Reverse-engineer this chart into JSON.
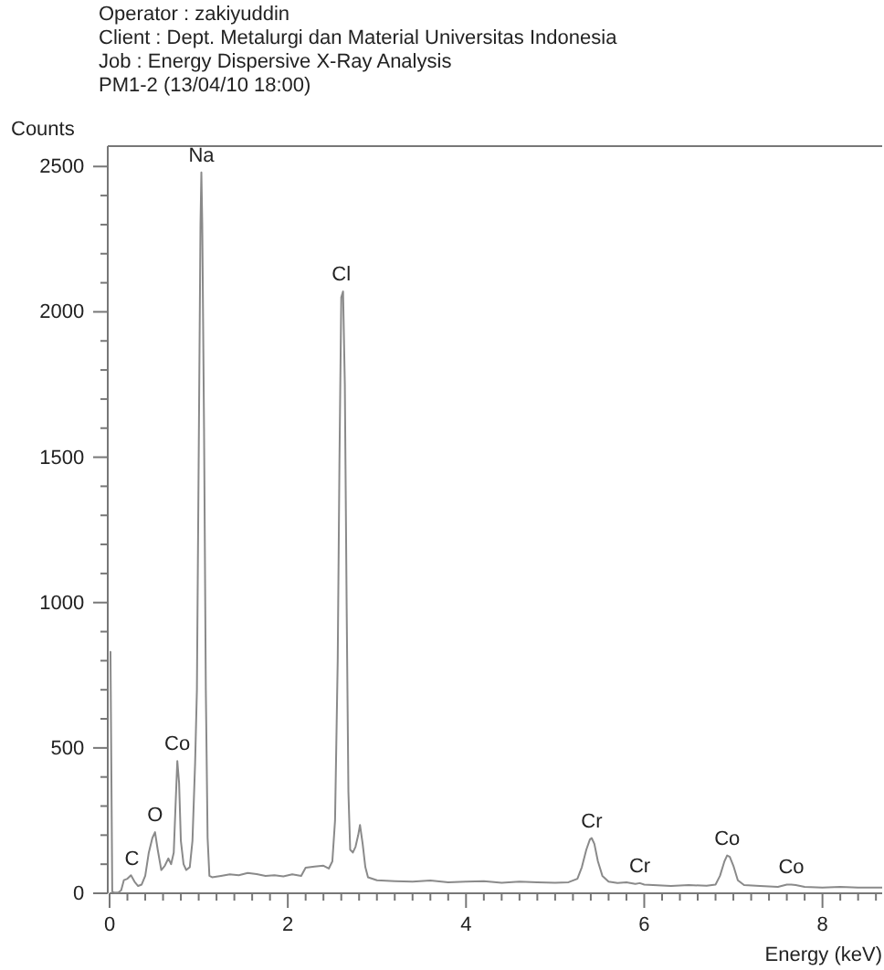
{
  "chart_data": {
    "type": "line",
    "xlabel": "Energy (keV)",
    "ylabel": "Counts",
    "annotations": [
      "Operator : zakiyuddin",
      "Client : Dept. Metalurgi dan Material Universitas Indonesia",
      "Job : Energy Dispersive X-Ray Analysis",
      "PM1-2 (13/04/10 18:00)",
      {
        "text": "Na",
        "x": 1.03,
        "y": 2480
      },
      {
        "text": "Cl",
        "x": 2.6,
        "y": 2070
      },
      {
        "text": "Co",
        "x": 0.76,
        "y": 455
      },
      {
        "text": "O",
        "x": 0.51,
        "y": 210
      },
      {
        "text": "C",
        "x": 0.25,
        "y": 60
      },
      {
        "text": "Cr",
        "x": 5.41,
        "y": 190
      },
      {
        "text": "Cr",
        "x": 5.95,
        "y": 35
      },
      {
        "text": "Co",
        "x": 6.93,
        "y": 130
      },
      {
        "text": "Co",
        "x": 7.65,
        "y": 30
      }
    ],
    "xlim": [
      0,
      8.67
    ],
    "ylim": [
      0,
      2570
    ],
    "xticks": [
      0,
      {
        "value": 0.2,
        "label": null
      },
      {
        "value": 0.4,
        "label": null
      },
      {
        "value": 0.6,
        "label": null
      },
      {
        "value": 0.8,
        "label": null
      },
      {
        "value": 1,
        "label": null
      },
      {
        "value": 1.2,
        "label": null
      },
      {
        "value": 1.4,
        "label": null
      },
      {
        "value": 1.6,
        "label": null
      },
      {
        "value": 1.8,
        "label": null
      },
      2,
      {
        "value": 2.2,
        "label": null
      },
      {
        "value": 2.4,
        "label": null
      },
      {
        "value": 2.6,
        "label": null
      },
      {
        "value": 2.8,
        "label": null
      },
      {
        "value": 3,
        "label": null
      },
      {
        "value": 3.2,
        "label": null
      },
      {
        "value": 3.4,
        "label": null
      },
      {
        "value": 3.6,
        "label": null
      },
      {
        "value": 3.8,
        "label": null
      },
      4,
      {
        "value": 4.2,
        "label": null
      },
      {
        "value": 4.4,
        "label": null
      },
      {
        "value": 4.6,
        "label": null
      },
      {
        "value": 4.8,
        "label": null
      },
      {
        "value": 5,
        "label": null
      },
      {
        "value": 5.2,
        "label": null
      },
      {
        "value": 5.4,
        "label": null
      },
      {
        "value": 5.6,
        "label": null
      },
      {
        "value": 5.8,
        "label": null
      },
      6,
      {
        "value": 6.2,
        "label": null
      },
      {
        "value": 6.4,
        "label": null
      },
      {
        "value": 6.6,
        "label": null
      },
      {
        "value": 6.8,
        "label": null
      },
      {
        "value": 7,
        "label": null
      },
      {
        "value": 7.2,
        "label": null
      },
      {
        "value": 7.4,
        "label": null
      },
      {
        "value": 7.6,
        "label": null
      },
      {
        "value": 7.8,
        "label": null
      },
      8,
      {
        "value": 8.2,
        "label": null
      },
      {
        "value": 8.4,
        "label": null
      },
      {
        "value": 8.6,
        "label": null
      }
    ],
    "yticks": [
      0,
      {
        "value": 100,
        "label": null
      },
      {
        "value": 200,
        "label": null
      },
      {
        "value": 300,
        "label": null
      },
      {
        "value": 400,
        "label": null
      },
      500,
      {
        "value": 600,
        "label": null
      },
      {
        "value": 700,
        "label": null
      },
      {
        "value": 800,
        "label": null
      },
      {
        "value": 900,
        "label": null
      },
      1000,
      {
        "value": 1100,
        "label": null
      },
      {
        "value": 1200,
        "label": null
      },
      {
        "value": 1300,
        "label": null
      },
      {
        "value": 1400,
        "label": null
      },
      1500,
      {
        "value": 1600,
        "label": null
      },
      {
        "value": 1700,
        "label": null
      },
      {
        "value": 1800,
        "label": null
      },
      {
        "value": 1900,
        "label": null
      },
      2000,
      {
        "value": 2100,
        "label": null
      },
      {
        "value": 2200,
        "label": null
      },
      {
        "value": 2300,
        "label": null
      },
      {
        "value": 2400,
        "label": null
      },
      2500
    ],
    "grid": false,
    "marker": "none",
    "line_style": "solid",
    "series": [
      {
        "color": "#8a8a8a",
        "x": [
          0,
          0.01,
          0.03,
          0.06,
          0.1,
          0.13,
          0.16,
          0.2,
          0.24,
          0.28,
          0.32,
          0.36,
          0.4,
          0.44,
          0.48,
          0.51,
          0.54,
          0.58,
          0.62,
          0.66,
          0.69,
          0.72,
          0.74,
          0.76,
          0.78,
          0.8,
          0.83,
          0.86,
          0.9,
          0.93,
          0.96,
          0.98,
          1.0,
          1.02,
          1.03,
          1.04,
          1.06,
          1.08,
          1.1,
          1.12,
          1.15,
          1.25,
          1.35,
          1.45,
          1.55,
          1.65,
          1.75,
          1.85,
          1.95,
          2.05,
          2.15,
          2.2,
          2.3,
          2.4,
          2.46,
          2.5,
          2.53,
          2.56,
          2.58,
          2.6,
          2.62,
          2.64,
          2.66,
          2.68,
          2.7,
          2.73,
          2.76,
          2.79,
          2.81,
          2.84,
          2.87,
          2.9,
          3.0,
          3.2,
          3.4,
          3.6,
          3.8,
          4.0,
          4.2,
          4.4,
          4.6,
          4.8,
          5.0,
          5.15,
          5.25,
          5.3,
          5.35,
          5.39,
          5.41,
          5.44,
          5.48,
          5.53,
          5.6,
          5.7,
          5.8,
          5.9,
          5.95,
          6.0,
          6.1,
          6.3,
          6.5,
          6.7,
          6.8,
          6.85,
          6.9,
          6.93,
          6.96,
          7.0,
          7.05,
          7.12,
          7.3,
          7.5,
          7.6,
          7.65,
          7.7,
          7.8,
          8.0,
          8.2,
          8.4,
          8.67
        ],
        "values": [
          830,
          830,
          5,
          2,
          3,
          10,
          45,
          50,
          62,
          40,
          25,
          30,
          60,
          140,
          190,
          210,
          150,
          80,
          95,
          120,
          100,
          140,
          300,
          455,
          380,
          180,
          100,
          80,
          90,
          180,
          450,
          700,
          1500,
          2300,
          2480,
          2300,
          1600,
          700,
          190,
          60,
          55,
          60,
          65,
          62,
          70,
          66,
          60,
          62,
          58,
          65,
          60,
          88,
          92,
          95,
          85,
          110,
          250,
          800,
          1500,
          2050,
          2070,
          1750,
          1000,
          350,
          150,
          140,
          160,
          200,
          235,
          170,
          90,
          55,
          45,
          42,
          40,
          44,
          38,
          40,
          42,
          36,
          40,
          38,
          36,
          38,
          50,
          90,
          150,
          185,
          190,
          170,
          110,
          60,
          40,
          35,
          38,
          32,
          35,
          30,
          28,
          25,
          28,
          26,
          30,
          60,
          110,
          130,
          125,
          95,
          45,
          28,
          25,
          22,
          30,
          30,
          28,
          22,
          20,
          22,
          20,
          20
        ]
      }
    ]
  }
}
